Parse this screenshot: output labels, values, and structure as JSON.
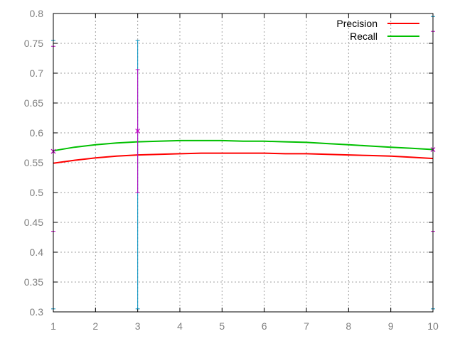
{
  "chart_data": {
    "type": "line",
    "title": "",
    "xlabel": "",
    "ylabel": "",
    "xlim": [
      1,
      10
    ],
    "ylim": [
      0.3,
      0.8
    ],
    "x_ticks": [
      "1",
      "2",
      "3",
      "4",
      "5",
      "6",
      "7",
      "8",
      "9",
      "10"
    ],
    "y_ticks": [
      "0.3",
      "0.35",
      "0.4",
      "0.45",
      "0.5",
      "0.55",
      "0.6",
      "0.65",
      "0.7",
      "0.75",
      "0.8"
    ],
    "grid": true,
    "legend_position": "top-right",
    "series": [
      {
        "name": "Precision",
        "color": "#ff0000",
        "x": [
          1,
          1.5,
          2,
          2.5,
          3,
          3.5,
          4,
          4.5,
          5,
          5.5,
          6,
          6.5,
          7,
          7.5,
          8,
          8.5,
          9,
          9.5,
          10
        ],
        "y": [
          0.549,
          0.554,
          0.558,
          0.561,
          0.563,
          0.564,
          0.565,
          0.566,
          0.566,
          0.566,
          0.566,
          0.565,
          0.565,
          0.564,
          0.563,
          0.562,
          0.561,
          0.559,
          0.557
        ]
      },
      {
        "name": "Recall",
        "color": "#00c000",
        "x": [
          1,
          1.5,
          2,
          2.5,
          3,
          3.5,
          4,
          4.5,
          5,
          5.5,
          6,
          6.5,
          7,
          7.5,
          8,
          8.5,
          9,
          9.5,
          10
        ],
        "y": [
          0.57,
          0.576,
          0.58,
          0.583,
          0.585,
          0.586,
          0.587,
          0.587,
          0.587,
          0.586,
          0.586,
          0.585,
          0.584,
          0.582,
          0.58,
          0.578,
          0.576,
          0.574,
          0.572
        ]
      }
    ],
    "error_bars": [
      {
        "color": "#0090c0",
        "points": [
          {
            "x": 1,
            "y": 0.569,
            "low": 0.305,
            "high": 0.755
          },
          {
            "x": 3,
            "y": 0.603,
            "low": 0.305,
            "high": 0.755
          },
          {
            "x": 10,
            "y": 0.572,
            "low": 0.305,
            "high": 0.795
          }
        ]
      },
      {
        "color": "#c000c0",
        "points": [
          {
            "x": 1,
            "y": 0.569,
            "low": 0.435,
            "high": 0.745
          },
          {
            "x": 3,
            "y": 0.603,
            "low": 0.5,
            "high": 0.706
          },
          {
            "x": 10,
            "y": 0.572,
            "low": 0.435,
            "high": 0.77
          }
        ]
      }
    ]
  }
}
